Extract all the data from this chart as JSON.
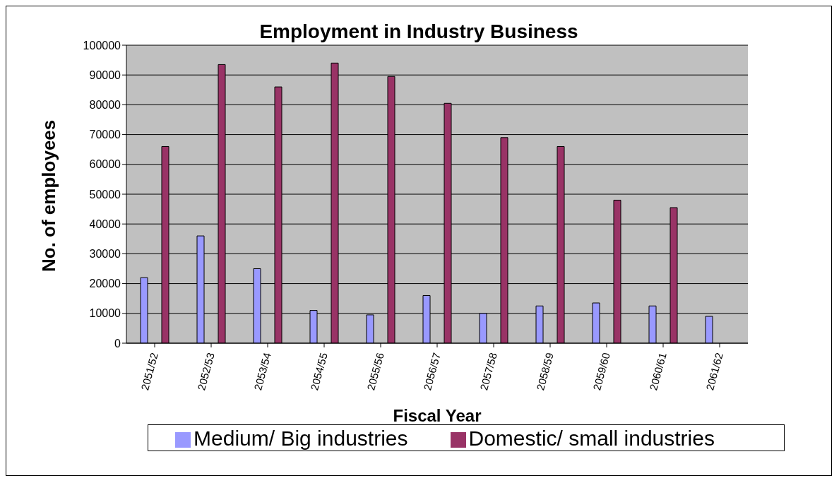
{
  "chart_data": {
    "type": "bar",
    "title": "Employment in Industry Business",
    "xlabel": "Fiscal Year",
    "ylabel": "No. of employees",
    "categories": [
      "2051/52",
      "2052/53",
      "2053/54",
      "2054/55",
      "2055/56",
      "2056/57",
      "2057/58",
      "2058/59",
      "2059/60",
      "2060/61",
      "2061/62"
    ],
    "series": [
      {
        "name": "Medium/ Big industries",
        "color": "#9999ff",
        "values": [
          22000,
          36000,
          25000,
          11000,
          9500,
          16000,
          10000,
          12500,
          13500,
          12500,
          9000
        ]
      },
      {
        "name": "Domestic/ small industries",
        "color": "#993366",
        "values": [
          66000,
          93500,
          86000,
          94000,
          89500,
          80500,
          69000,
          66000,
          48000,
          45500,
          0
        ]
      }
    ],
    "ylim": [
      0,
      100000
    ],
    "yticks": [
      0,
      10000,
      20000,
      30000,
      40000,
      50000,
      60000,
      70000,
      80000,
      90000,
      100000
    ],
    "grid": "y",
    "legend": "bottom"
  }
}
